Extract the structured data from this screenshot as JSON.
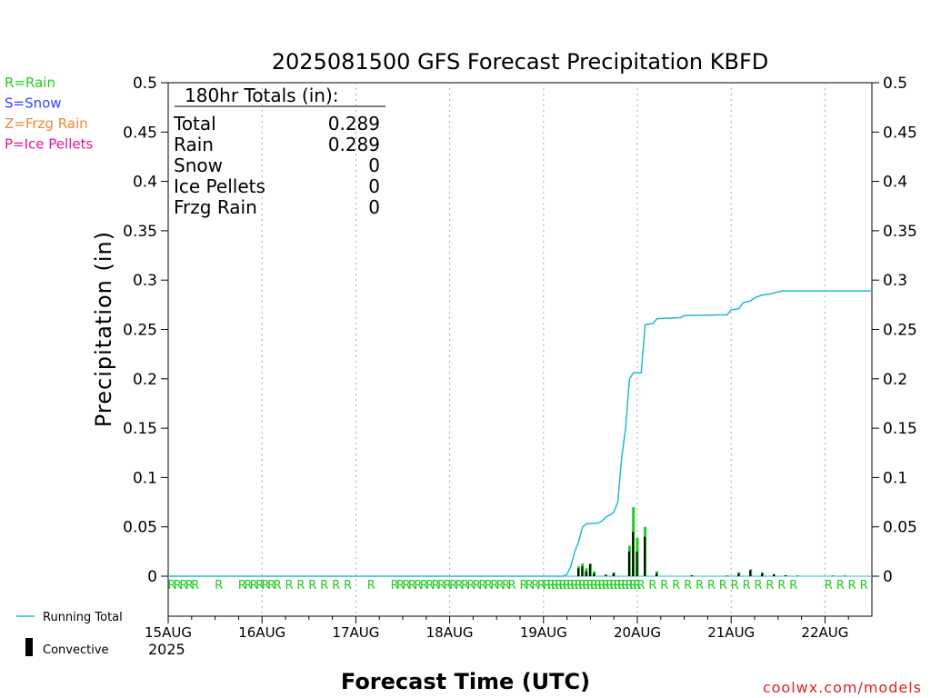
{
  "title": "2025081500 GFS Forecast Precipitation KBFD",
  "ylabel": "Precipitation (in)",
  "xlabel": "Forecast Time (UTC)",
  "watermark": "coolwx.com/models",
  "legend_types": [
    {
      "text": "R=Rain",
      "color": "#22cc22"
    },
    {
      "text": "S=Snow",
      "color": "#3344ff"
    },
    {
      "text": "Z=Frzg Rain",
      "color": "#ee8833"
    },
    {
      "text": "P=Ice Pellets",
      "color": "#ee1199"
    }
  ],
  "legend_bottom": {
    "running_total": "Running Total",
    "convective": "Convective",
    "running_total_color": "#22bbcc",
    "convective_color": "#000000"
  },
  "totals_box": {
    "header": "180hr Totals (in):",
    "rows": [
      {
        "label": "Total",
        "value": "0.289"
      },
      {
        "label": "Rain",
        "value": "0.289"
      },
      {
        "label": "Snow",
        "value": "0"
      },
      {
        "label": "Ice Pellets",
        "value": "0"
      },
      {
        "label": "Frzg Rain",
        "value": "0"
      }
    ]
  },
  "chart_data": {
    "type": "bar",
    "title": "2025081500 GFS Forecast Precipitation KBFD",
    "xlabel": "Forecast Time (UTC)",
    "ylabel": "Precipitation (in)",
    "ylim": [
      0,
      0.5
    ],
    "xlim_hours": [
      0,
      180
    ],
    "y_ticks": [
      "0",
      "0.05",
      "0.1",
      "0.15",
      "0.2",
      "0.25",
      "0.3",
      "0.35",
      "0.4",
      "0.45",
      "0.5"
    ],
    "x_tick_labels": [
      "15AUG",
      "16AUG",
      "17AUG",
      "18AUG",
      "19AUG",
      "20AUG",
      "21AUG",
      "22AUG"
    ],
    "x_tick_hours": [
      0,
      24,
      48,
      72,
      96,
      120,
      144,
      168
    ],
    "x_year_label": "2025",
    "grid": "vertical-dotted",
    "legend_position": "left",
    "series": [
      {
        "name": "Running Total",
        "color": "#22bbcc",
        "kind": "line",
        "points": [
          [
            0,
            0.0
          ],
          [
            66,
            0.0
          ],
          [
            101,
            0.0
          ],
          [
            102,
            0.002
          ],
          [
            103,
            0.01
          ],
          [
            104,
            0.025
          ],
          [
            105,
            0.035
          ],
          [
            106,
            0.05
          ],
          [
            107,
            0.053
          ],
          [
            110,
            0.054
          ],
          [
            111,
            0.056
          ],
          [
            112,
            0.06
          ],
          [
            113,
            0.062
          ],
          [
            114,
            0.065
          ],
          [
            115,
            0.075
          ],
          [
            116,
            0.12
          ],
          [
            117,
            0.15
          ],
          [
            118,
            0.2
          ],
          [
            119,
            0.206
          ],
          [
            121,
            0.206
          ],
          [
            122,
            0.255
          ],
          [
            124,
            0.256
          ],
          [
            125,
            0.261
          ],
          [
            131,
            0.262
          ],
          [
            132,
            0.264
          ],
          [
            143,
            0.265
          ],
          [
            144,
            0.27
          ],
          [
            146,
            0.271
          ],
          [
            147,
            0.277
          ],
          [
            149,
            0.279
          ],
          [
            150,
            0.282
          ],
          [
            152,
            0.285
          ],
          [
            154,
            0.286
          ],
          [
            156,
            0.288
          ],
          [
            157,
            0.289
          ],
          [
            180,
            0.289
          ]
        ]
      },
      {
        "name": "Rain",
        "color": "#22cc22",
        "kind": "bar",
        "values": [
          [
            105,
            0.01
          ],
          [
            106,
            0.013
          ],
          [
            107,
            0.008
          ],
          [
            108,
            0.013
          ],
          [
            109,
            0.005
          ],
          [
            112,
            0.002
          ],
          [
            114,
            0.004
          ],
          [
            118,
            0.031
          ],
          [
            119,
            0.07
          ],
          [
            120,
            0.039
          ],
          [
            122,
            0.05
          ],
          [
            125,
            0.005
          ],
          [
            134,
            0.001
          ],
          [
            143,
            0.001
          ],
          [
            146,
            0.004
          ],
          [
            149,
            0.007
          ],
          [
            152,
            0.004
          ],
          [
            155,
            0.002
          ],
          [
            158,
            0.001
          ],
          [
            161,
            0.001
          ],
          [
            170,
            0.001
          ],
          [
            173,
            0.001
          ]
        ]
      },
      {
        "name": "Convective",
        "color": "#000000",
        "kind": "bar",
        "values": [
          [
            105,
            0.008
          ],
          [
            106,
            0.01
          ],
          [
            107,
            0.005
          ],
          [
            108,
            0.012
          ],
          [
            109,
            0.003
          ],
          [
            112,
            0.001
          ],
          [
            114,
            0.003
          ],
          [
            118,
            0.025
          ],
          [
            119,
            0.045
          ],
          [
            120,
            0.025
          ],
          [
            122,
            0.04
          ],
          [
            125,
            0.003
          ],
          [
            134,
            0.001
          ],
          [
            146,
            0.003
          ],
          [
            149,
            0.006
          ],
          [
            152,
            0.003
          ],
          [
            155,
            0.002
          ],
          [
            158,
            0.001
          ]
        ]
      }
    ],
    "ptype_row": {
      "color": "#22cc22",
      "markers": [
        [
          0,
          "R"
        ],
        [
          1.5,
          "R"
        ],
        [
          3,
          "R"
        ],
        [
          4.5,
          "R"
        ],
        [
          6,
          "R"
        ],
        [
          12,
          "R"
        ],
        [
          18,
          "R"
        ],
        [
          19.5,
          "R"
        ],
        [
          21,
          "R"
        ],
        [
          22.5,
          "R"
        ],
        [
          24,
          "R"
        ],
        [
          25.5,
          "R"
        ],
        [
          27,
          "R"
        ],
        [
          30,
          "R"
        ],
        [
          33,
          "R"
        ],
        [
          36,
          "R"
        ],
        [
          39,
          "R"
        ],
        [
          42,
          "R"
        ],
        [
          45,
          "R"
        ],
        [
          51,
          "R"
        ],
        [
          57,
          "R"
        ],
        [
          58.5,
          "R"
        ],
        [
          60,
          "R"
        ],
        [
          61.5,
          "R"
        ],
        [
          63,
          "R"
        ],
        [
          64.5,
          "R"
        ],
        [
          66,
          "R"
        ],
        [
          67.5,
          "R"
        ],
        [
          69,
          "R"
        ],
        [
          70.5,
          "R"
        ],
        [
          72,
          "R"
        ],
        [
          73.5,
          "R"
        ],
        [
          75,
          "R"
        ],
        [
          76.5,
          "R"
        ],
        [
          78,
          "R"
        ],
        [
          79.5,
          "R"
        ],
        [
          81,
          "R"
        ],
        [
          82.5,
          "R"
        ],
        [
          84,
          "R"
        ],
        [
          85.5,
          "R"
        ],
        [
          87,
          "R"
        ],
        [
          90,
          "R"
        ],
        [
          91.5,
          "R"
        ],
        [
          93,
          "R"
        ],
        [
          94.5,
          "R"
        ],
        [
          96,
          "R"
        ],
        [
          97,
          "R"
        ],
        [
          98,
          "R"
        ],
        [
          99,
          "R"
        ],
        [
          100,
          "R"
        ],
        [
          101,
          "R"
        ],
        [
          102,
          "R"
        ],
        [
          103,
          "R"
        ],
        [
          104,
          "R"
        ],
        [
          105,
          "R"
        ],
        [
          106,
          "R"
        ],
        [
          107,
          "R"
        ],
        [
          108,
          "R"
        ],
        [
          109,
          "R"
        ],
        [
          110,
          "R"
        ],
        [
          111,
          "R"
        ],
        [
          112,
          "R"
        ],
        [
          113,
          "R"
        ],
        [
          114,
          "R"
        ],
        [
          115,
          "R"
        ],
        [
          116,
          "R"
        ],
        [
          117,
          "R"
        ],
        [
          118,
          "R"
        ],
        [
          119,
          "R"
        ],
        [
          120,
          "R"
        ],
        [
          123,
          "R"
        ],
        [
          126,
          "R"
        ],
        [
          129,
          "R"
        ],
        [
          132,
          "R"
        ],
        [
          135,
          "R"
        ],
        [
          138,
          "R"
        ],
        [
          141,
          "R"
        ],
        [
          144,
          "R"
        ],
        [
          147,
          "R"
        ],
        [
          150,
          "R"
        ],
        [
          153,
          "R"
        ],
        [
          156,
          "R"
        ],
        [
          159,
          "R"
        ],
        [
          168,
          "R"
        ],
        [
          171,
          "R"
        ],
        [
          174,
          "R"
        ],
        [
          177,
          "R"
        ]
      ]
    }
  }
}
